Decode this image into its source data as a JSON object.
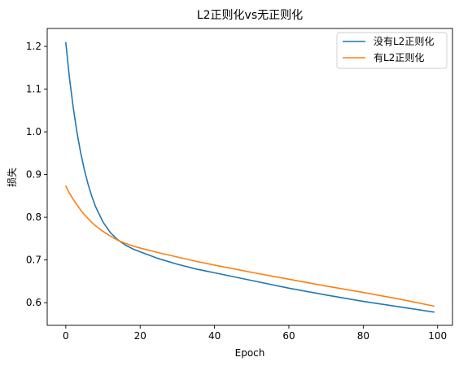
{
  "chart_data": {
    "type": "line",
    "title": "L2正则化vs无正则化",
    "xlabel": "Epoch",
    "ylabel": "损失",
    "xlim": [
      -5,
      104
    ],
    "ylim": [
      0.547,
      1.242
    ],
    "xticks": [
      0,
      20,
      40,
      60,
      80,
      100
    ],
    "yticks": [
      0.6,
      0.7,
      0.8,
      0.9,
      1.0,
      1.1,
      1.2
    ],
    "ytick_labels": [
      "0.6",
      "0.7",
      "0.8",
      "0.9",
      "1.0",
      "1.1",
      "1.2"
    ],
    "grid": false,
    "legend_position": "top-right",
    "series": [
      {
        "name": "没有L2正则化",
        "color": "#1f77b4",
        "x": [
          0,
          1,
          2,
          3,
          4,
          5,
          6,
          7,
          8,
          10,
          12,
          14,
          16,
          18,
          20,
          25,
          30,
          35,
          40,
          50,
          60,
          70,
          80,
          90,
          99
        ],
        "values": [
          1.209,
          1.125,
          1.057,
          0.999,
          0.951,
          0.911,
          0.877,
          0.849,
          0.825,
          0.789,
          0.764,
          0.747,
          0.735,
          0.726,
          0.719,
          0.703,
          0.69,
          0.679,
          0.67,
          0.652,
          0.634,
          0.618,
          0.603,
          0.59,
          0.578
        ]
      },
      {
        "name": "有L2正则化",
        "color": "#ff7f0e",
        "x": [
          0,
          1,
          2,
          3,
          4,
          5,
          6,
          7,
          8,
          10,
          12,
          14,
          16,
          18,
          20,
          25,
          30,
          35,
          40,
          50,
          60,
          70,
          80,
          90,
          99
        ],
        "values": [
          0.873,
          0.856,
          0.842,
          0.829,
          0.817,
          0.806,
          0.797,
          0.788,
          0.78,
          0.767,
          0.756,
          0.746,
          0.739,
          0.733,
          0.728,
          0.717,
          0.707,
          0.697,
          0.688,
          0.671,
          0.655,
          0.639,
          0.624,
          0.608,
          0.592
        ]
      }
    ]
  }
}
